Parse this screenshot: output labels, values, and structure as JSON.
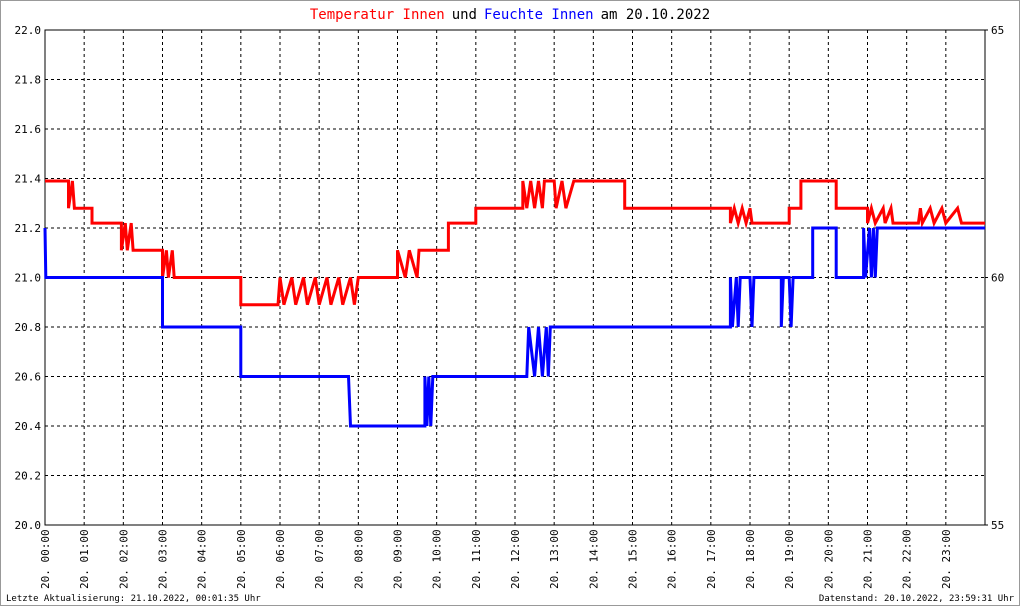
{
  "chart_data": {
    "type": "line",
    "title_parts": [
      {
        "text": "Temperatur Innen",
        "color": "#ff0000"
      },
      {
        "text": "und",
        "color": "#000000"
      },
      {
        "text": "Feuchte Innen",
        "color": "#0000ff"
      },
      {
        "text": "am 20.10.2022",
        "color": "#000000"
      }
    ],
    "footer_left": "Letzte Aktualisierung: 21.10.2022, 00:01:35 Uhr",
    "footer_right": "Datenstand: 20.10.2022, 23:59:31 Uhr",
    "xlim": [
      0,
      24
    ],
    "xticks": [
      {
        "value": 0,
        "label": "20. 00:00"
      },
      {
        "value": 1,
        "label": "20. 01:00"
      },
      {
        "value": 2,
        "label": "20. 02:00"
      },
      {
        "value": 3,
        "label": "20. 03:00"
      },
      {
        "value": 4,
        "label": "20. 04:00"
      },
      {
        "value": 5,
        "label": "20. 05:00"
      },
      {
        "value": 6,
        "label": "20. 06:00"
      },
      {
        "value": 7,
        "label": "20. 07:00"
      },
      {
        "value": 8,
        "label": "20. 08:00"
      },
      {
        "value": 9,
        "label": "20. 09:00"
      },
      {
        "value": 10,
        "label": "20. 10:00"
      },
      {
        "value": 11,
        "label": "20. 11:00"
      },
      {
        "value": 12,
        "label": "20. 12:00"
      },
      {
        "value": 13,
        "label": "20. 13:00"
      },
      {
        "value": 14,
        "label": "20. 14:00"
      },
      {
        "value": 15,
        "label": "20. 15:00"
      },
      {
        "value": 16,
        "label": "20. 16:00"
      },
      {
        "value": 17,
        "label": "20. 17:00"
      },
      {
        "value": 18,
        "label": "20. 18:00"
      },
      {
        "value": 19,
        "label": "20. 19:00"
      },
      {
        "value": 20,
        "label": "20. 20:00"
      },
      {
        "value": 21,
        "label": "20. 21:00"
      },
      {
        "value": 22,
        "label": "20. 22:00"
      },
      {
        "value": 23,
        "label": "20. 23:00"
      }
    ],
    "ylim": [
      20.0,
      22.0
    ],
    "yticks": [
      {
        "value": 20.0,
        "label": "20.0"
      },
      {
        "value": 20.2,
        "label": "20.2"
      },
      {
        "value": 20.4,
        "label": "20.4"
      },
      {
        "value": 20.6,
        "label": "20.6"
      },
      {
        "value": 20.8,
        "label": "20.8"
      },
      {
        "value": 21.0,
        "label": "21.0"
      },
      {
        "value": 21.2,
        "label": "21.2"
      },
      {
        "value": 21.4,
        "label": "21.4"
      },
      {
        "value": 21.6,
        "label": "21.6"
      },
      {
        "value": 21.8,
        "label": "21.8"
      },
      {
        "value": 22.0,
        "label": "22.0"
      }
    ],
    "y2lim": [
      55,
      65
    ],
    "y2ticks": [
      55,
      60,
      65
    ],
    "grid": true,
    "series": [
      {
        "name": "Temperatur Innen",
        "color": "#ff0000",
        "x": [
          0,
          0.6,
          0.6,
          0.7,
          0.75,
          1.2,
          1.2,
          1.95,
          1.95,
          2.05,
          2.1,
          2.2,
          2.25,
          3.0,
          3.0,
          3.1,
          3.15,
          3.25,
          3.3,
          5.0,
          5.0,
          5.95,
          6.0,
          6.1,
          6.3,
          6.4,
          6.6,
          6.7,
          6.9,
          7.0,
          7.2,
          7.3,
          7.5,
          7.6,
          7.8,
          7.9,
          8.0,
          9.0,
          9.0,
          9.2,
          9.3,
          9.5,
          9.55,
          10.3,
          10.3,
          11.0,
          11.0,
          12.2,
          12.2,
          12.3,
          12.4,
          12.5,
          12.6,
          12.7,
          12.75,
          13.0,
          13.05,
          13.2,
          13.3,
          13.5,
          14.8,
          14.8,
          17.5,
          17.5,
          17.6,
          17.7,
          17.8,
          17.9,
          18.0,
          18.05,
          19.0,
          19.0,
          19.3,
          19.3,
          20.2,
          20.2,
          21.0,
          21.0,
          21.1,
          21.2,
          21.4,
          21.45,
          21.6,
          21.65,
          22.3,
          22.35,
          22.4,
          22.6,
          22.7,
          22.9,
          23.0,
          23.3,
          23.4,
          24
        ],
        "values": [
          21.39,
          21.39,
          21.28,
          21.39,
          21.28,
          21.28,
          21.22,
          21.22,
          21.11,
          21.22,
          21.11,
          21.22,
          21.11,
          21.11,
          21.0,
          21.11,
          21.0,
          21.11,
          21.0,
          21.0,
          20.89,
          20.89,
          21.0,
          20.89,
          21.0,
          20.89,
          21.0,
          20.89,
          21.0,
          20.89,
          21.0,
          20.89,
          21.0,
          20.89,
          21.0,
          20.89,
          21.0,
          21.0,
          21.11,
          21.0,
          21.11,
          21.0,
          21.11,
          21.11,
          21.22,
          21.22,
          21.28,
          21.28,
          21.39,
          21.28,
          21.39,
          21.28,
          21.39,
          21.28,
          21.39,
          21.39,
          21.28,
          21.39,
          21.28,
          21.39,
          21.39,
          21.28,
          21.28,
          21.22,
          21.28,
          21.22,
          21.28,
          21.22,
          21.28,
          21.22,
          21.22,
          21.28,
          21.28,
          21.39,
          21.39,
          21.28,
          21.28,
          21.22,
          21.28,
          21.22,
          21.28,
          21.22,
          21.28,
          21.22,
          21.22,
          21.28,
          21.22,
          21.28,
          21.22,
          21.28,
          21.22,
          21.28,
          21.22,
          21.22
        ]
      },
      {
        "name": "Feuchte Innen",
        "color": "#0000ff",
        "axis": "y2",
        "x": [
          0,
          0.02,
          3.0,
          3.0,
          5.0,
          5.0,
          7.75,
          7.8,
          9.7,
          9.7,
          9.75,
          9.8,
          9.85,
          9.9,
          12.3,
          12.35,
          12.5,
          12.6,
          12.7,
          12.8,
          12.85,
          12.9,
          17.5,
          17.5,
          17.55,
          17.65,
          17.7,
          17.75,
          18.0,
          18.05,
          18.1,
          18.8,
          18.8,
          18.85,
          19.0,
          19.05,
          19.1,
          19.6,
          19.6,
          20.2,
          20.2,
          20.9,
          20.9,
          20.95,
          21.05,
          21.1,
          21.15,
          21.2,
          21.25,
          24
        ],
        "values": [
          61,
          60,
          60,
          59,
          59,
          58,
          58,
          57,
          57,
          58,
          57,
          58,
          57,
          58,
          58,
          59,
          58,
          59,
          58,
          59,
          58,
          59,
          59,
          60,
          59,
          60,
          59,
          60,
          60,
          59,
          60,
          60,
          59,
          60,
          60,
          59,
          60,
          60,
          61,
          61,
          60,
          60,
          61,
          60,
          61,
          60,
          61,
          60,
          61,
          61
        ]
      }
    ]
  }
}
